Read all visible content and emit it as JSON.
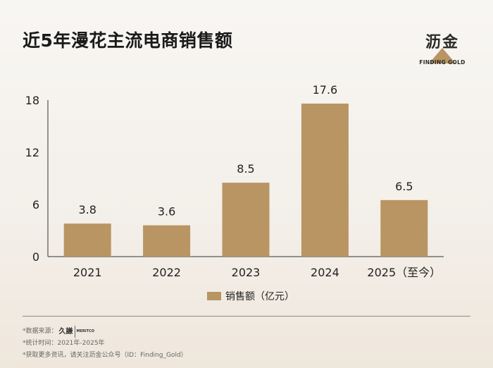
{
  "header": {
    "title": "近5年漫花主流电商销售额",
    "brand_name": "沥金",
    "brand_sub": "FINDING GOLD"
  },
  "colors": {
    "bar": "#b99563",
    "axis": "#333333",
    "text": "#222222"
  },
  "chart_data": {
    "type": "bar",
    "title": "近5年漫花主流电商销售额",
    "categories": [
      "2021",
      "2022",
      "2023",
      "2024",
      "2025（至今）"
    ],
    "values": [
      3.8,
      3.6,
      8.5,
      17.6,
      6.5
    ],
    "value_labels": [
      "3.8",
      "3.6",
      "8.5",
      "17.6",
      "6.5"
    ],
    "ylim": [
      0,
      18
    ],
    "yticks": [
      0,
      6,
      12,
      18
    ],
    "series_name": "销售额（亿元）",
    "legend_position": "bottom-center",
    "xlabel": "",
    "ylabel": "",
    "grid": false
  },
  "footer": {
    "source_label": "*数据来源：",
    "source_logo_cn": "久謙",
    "source_logo_en": "MERITCO",
    "period": "*统计时间：2021年-2025年",
    "more_prefix": "*获取更多资讯，请关注",
    "more_account": "沥金公众号（ID：Finding_Gold）"
  }
}
